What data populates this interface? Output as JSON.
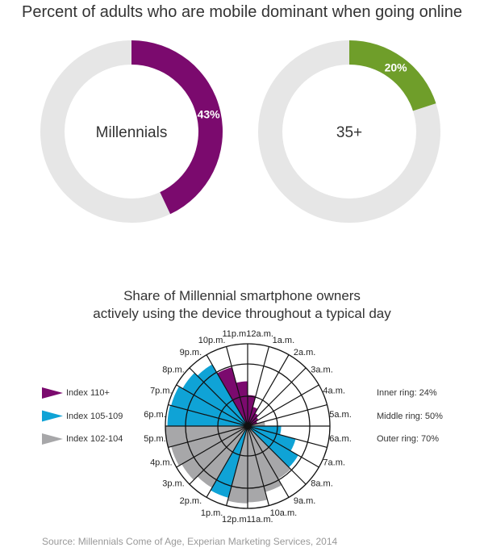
{
  "chart_data": [
    {
      "type": "pie",
      "title": "Percent of adults who are mobile dominant when going online",
      "charts": [
        {
          "label": "Millennials",
          "value": 43,
          "value_label": "43%",
          "color": "#7b0a6e",
          "rest_color": "#e6e6e6"
        },
        {
          "label": "35+",
          "value": 20,
          "value_label": "20%",
          "color": "#6f9e2a",
          "rest_color": "#e6e6e6"
        }
      ]
    },
    {
      "type": "polar-bar",
      "title_lines": [
        "Share of Millennial smartphone owners",
        "actively using the device throughout a typical day"
      ],
      "categories": [
        "12a.m.",
        "1a.m.",
        "2a.m.",
        "3a.m.",
        "4a.m.",
        "5a.m.",
        "6a.m.",
        "7a.m.",
        "8a.m.",
        "9a.m.",
        "10a.m.",
        "11a.m.",
        "12p.m.",
        "1p.m.",
        "2p.m.",
        "3p.m.",
        "4p.m.",
        "5p.m.",
        "6p.m.",
        "7p.m.",
        "8p.m.",
        "9p.m.",
        "10p.m.",
        "11p.m."
      ],
      "values": [
        25,
        16,
        12,
        10,
        8,
        14,
        27,
        40,
        47,
        49,
        56,
        64,
        65,
        62,
        59,
        64,
        67,
        70,
        68,
        67,
        63,
        59,
        49,
        36
      ],
      "index_group": [
        "110+",
        "110+",
        "110+",
        "110+",
        "110+",
        "102-104",
        "105-109",
        "105-109",
        "105-109",
        "102-104",
        "102-104",
        "102-104",
        "102-104",
        "105-109",
        "102-104",
        "102-104",
        "102-104",
        "102-104",
        "105-109",
        "105-109",
        "105-109",
        "105-109",
        "110+",
        "110+"
      ],
      "legend": [
        {
          "label": "Index 110+",
          "key": "110+",
          "color": "#7b0a6e"
        },
        {
          "label": "Index 105-109",
          "key": "105-109",
          "color": "#0fa3d6"
        },
        {
          "label": "Index 102-104",
          "key": "102-104",
          "color": "#a7a7a9"
        }
      ],
      "rings": [
        {
          "label": "Inner ring: 24%",
          "value": 24
        },
        {
          "label": "Middle ring: 50%",
          "value": 50
        },
        {
          "label": "Outer ring: 70%",
          "value": 70
        }
      ]
    }
  ],
  "source": "Source: Millennials Come of Age, Experian Marketing Services, 2014"
}
